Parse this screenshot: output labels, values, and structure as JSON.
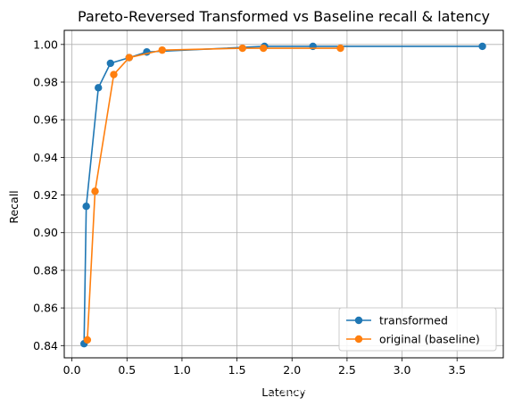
{
  "chart_data": {
    "type": "line",
    "title": "Pareto-Reversed Transformed vs Baseline recall & latency",
    "xlabel": "Latency",
    "ylabel": "Recall",
    "xlim": [
      -0.07,
      3.92
    ],
    "ylim": [
      0.8335,
      1.0075
    ],
    "xticks": [
      0.0,
      0.5,
      1.0,
      1.5,
      2.0,
      2.5,
      3.0,
      3.5
    ],
    "xtick_labels": [
      "0.0",
      "0.5",
      "1.0",
      "1.5",
      "2.0",
      "2.5",
      "3.0",
      "3.5"
    ],
    "yticks": [
      0.84,
      0.86,
      0.88,
      0.9,
      0.92,
      0.94,
      0.96,
      0.98,
      1.0
    ],
    "ytick_labels": [
      "0.84",
      "0.86",
      "0.88",
      "0.90",
      "0.92",
      "0.94",
      "0.96",
      "0.98",
      "1.00"
    ],
    "grid": true,
    "legend_position": "bottom-right",
    "series": [
      {
        "name": "transformed",
        "color": "#1f77b4",
        "x": [
          0.11,
          0.13,
          0.24,
          0.35,
          0.52,
          0.68,
          1.75,
          2.19,
          3.73
        ],
        "y": [
          0.841,
          0.914,
          0.977,
          0.99,
          0.993,
          0.996,
          0.999,
          0.999,
          0.999
        ]
      },
      {
        "name": "original (baseline)",
        "color": "#ff7f0e",
        "x": [
          0.14,
          0.21,
          0.38,
          0.52,
          0.82,
          1.55,
          1.74,
          2.44
        ],
        "y": [
          0.843,
          0.922,
          0.984,
          0.993,
          0.997,
          0.998,
          0.998,
          0.998
        ]
      }
    ]
  },
  "watermark": "CSDN @Elastic 中国社区官方博客"
}
